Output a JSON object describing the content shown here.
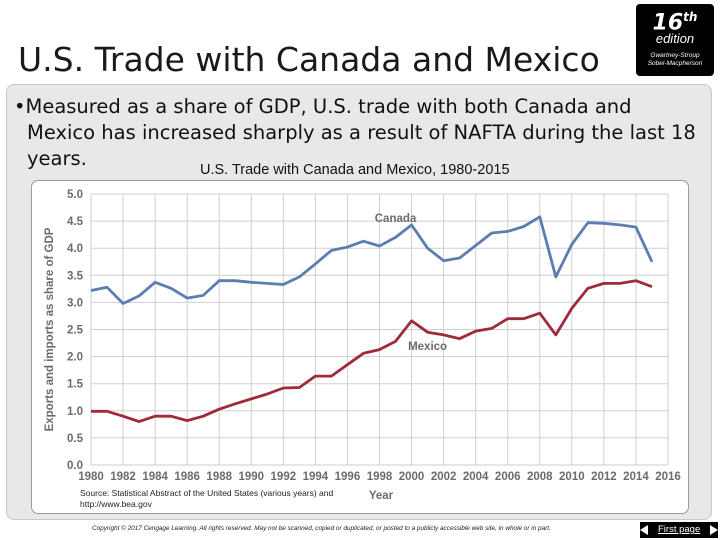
{
  "slide": {
    "title": "U.S. Trade with Canada and Mexico",
    "bullet_lines": [
      "•Measured as a share of GDP, U.S. trade with both Canada and",
      "Mexico has increased sharply as a result of NAFTA during the last 18",
      "years."
    ]
  },
  "badge": {
    "number": "16",
    "suffix": "th",
    "word": "edition",
    "authors": [
      "Gwartney-Stroup",
      "Sobel-Macpherson"
    ]
  },
  "source_lines": [
    "Source: Statistical Abstract of the United States (various years) and",
    "http://www.bea.gov"
  ],
  "copyright": "Copyright © 2017 Cengage Learning. All rights reserved. May not be scanned, copied or duplicated, or posted to a publicly accessible web site, in whole or in part.",
  "nav": {
    "first_page_label": "First page"
  },
  "chart_data": {
    "type": "line",
    "title": "U.S. Trade with Canada and Mexico, 1980-2015",
    "xlabel": "Year",
    "ylabel": "Exports and imports as share of GDP",
    "xlim": [
      1980,
      2016
    ],
    "ylim": [
      0.0,
      5.0
    ],
    "x_ticks": [
      1980,
      1982,
      1984,
      1986,
      1988,
      1990,
      1992,
      1994,
      1996,
      1998,
      2000,
      2002,
      2004,
      2006,
      2008,
      2010,
      2012,
      2014,
      2016
    ],
    "y_ticks": [
      "0.0",
      "0.5",
      "1.0",
      "1.5",
      "2.0",
      "2.5",
      "3.0",
      "3.5",
      "4.0",
      "4.5",
      "5.0"
    ],
    "grid": true,
    "x": [
      1980,
      1981,
      1982,
      1983,
      1984,
      1985,
      1986,
      1987,
      1988,
      1989,
      1990,
      1991,
      1992,
      1993,
      1994,
      1995,
      1996,
      1997,
      1998,
      1999,
      2000,
      2001,
      2002,
      2003,
      2004,
      2005,
      2006,
      2007,
      2008,
      2009,
      2010,
      2011,
      2012,
      2013,
      2014,
      2015
    ],
    "series": [
      {
        "name": "Canada",
        "color": "#5b7db1",
        "values": [
          3.22,
          3.28,
          2.98,
          3.12,
          3.37,
          3.26,
          3.08,
          3.13,
          3.4,
          3.4,
          3.37,
          3.35,
          3.33,
          3.47,
          3.71,
          3.96,
          4.02,
          4.13,
          4.04,
          4.2,
          4.43,
          4.0,
          3.77,
          3.82,
          4.05,
          4.28,
          4.31,
          4.4,
          4.58,
          3.47,
          4.07,
          4.47,
          4.46,
          4.43,
          4.39,
          3.75
        ]
      },
      {
        "name": "Mexico",
        "color": "#9e2a3a",
        "values": [
          0.99,
          0.99,
          0.9,
          0.8,
          0.9,
          0.9,
          0.82,
          0.9,
          1.03,
          1.13,
          1.22,
          1.31,
          1.42,
          1.43,
          1.64,
          1.64,
          1.85,
          2.06,
          2.13,
          2.28,
          2.66,
          2.45,
          2.4,
          2.33,
          2.47,
          2.52,
          2.7,
          2.7,
          2.8,
          2.4,
          2.89,
          3.26,
          3.35,
          3.35,
          3.4,
          3.29
        ]
      }
    ]
  }
}
